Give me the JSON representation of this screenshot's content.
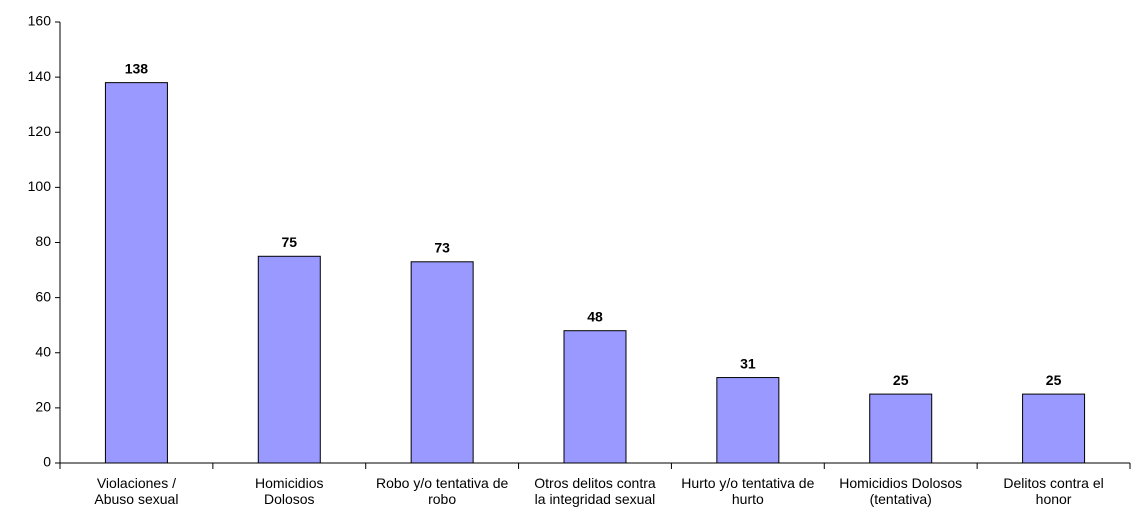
{
  "chart_data": {
    "type": "bar",
    "categories": [
      "Violaciones /\nAbuso sexual",
      "Homicidios\nDolosos",
      "Robo y/o tentativa de\nrobo",
      "Otros delitos contra\nla integridad sexual",
      "Hurto y/o tentativa de\nhurto",
      "Homicidios Dolosos\n(tentativa)",
      "Delitos contra el\nhonor"
    ],
    "values": [
      138,
      75,
      73,
      48,
      31,
      25,
      25
    ],
    "color": "#9999ff",
    "ylim": [
      0,
      160
    ],
    "yticks": [
      0,
      20,
      40,
      60,
      80,
      100,
      120,
      140,
      160
    ],
    "grid": false
  }
}
